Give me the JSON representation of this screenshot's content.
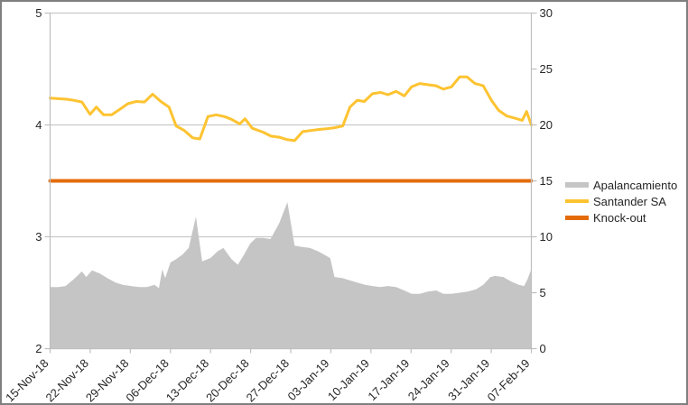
{
  "chart_data": {
    "type": "combo(area+line)",
    "title": "",
    "xlabel": "",
    "ylabel": "",
    "grid": "horizontal-major-only",
    "legend_position": "right",
    "colors": {
      "background": "#FFFFFF",
      "frame_border": "#7F7F7F",
      "grid": "#C9C9C9",
      "axis": "#BFBFBF",
      "labels": "#262626"
    },
    "axes": {
      "left": {
        "min": 2,
        "max": 5,
        "tick_values": [
          5,
          4,
          3,
          2
        ],
        "tick_labels": [
          "5",
          "4",
          "3",
          "2"
        ]
      },
      "right": {
        "min": 0,
        "max": 30,
        "tick_values": [
          30,
          25,
          20,
          15,
          10,
          5,
          0
        ],
        "tick_labels": [
          "30",
          "25",
          "20",
          "15",
          "10",
          "5",
          "0"
        ]
      },
      "x": {
        "labels": [
          "15-Nov-18",
          "22-Nov-18",
          "29-Nov-18",
          "06-Dec-18",
          "13-Dec-18",
          "20-Dec-18",
          "27-Dec-18",
          "03-Jan-19",
          "10-Jan-19",
          "17-Jan-19",
          "24-Jan-19",
          "31-Jan-19",
          "07-Feb-19"
        ],
        "label_rotation_deg": -45
      }
    },
    "series": [
      {
        "name": "Apalancamiento",
        "type": "area",
        "axis": "left",
        "color": "#C5C5C5",
        "points": [
          [
            0.0,
            2.55
          ],
          [
            0.017,
            2.55
          ],
          [
            0.032,
            2.56
          ],
          [
            0.049,
            2.62
          ],
          [
            0.066,
            2.69
          ],
          [
            0.075,
            2.64
          ],
          [
            0.087,
            2.7
          ],
          [
            0.104,
            2.67
          ],
          [
            0.119,
            2.63
          ],
          [
            0.136,
            2.59
          ],
          [
            0.151,
            2.57
          ],
          [
            0.168,
            2.56
          ],
          [
            0.185,
            2.55
          ],
          [
            0.201,
            2.55
          ],
          [
            0.217,
            2.57
          ],
          [
            0.226,
            2.54
          ],
          [
            0.233,
            2.71
          ],
          [
            0.239,
            2.63
          ],
          [
            0.25,
            2.77
          ],
          [
            0.262,
            2.8
          ],
          [
            0.275,
            2.84
          ],
          [
            0.288,
            2.9
          ],
          [
            0.303,
            3.18
          ],
          [
            0.316,
            2.78
          ],
          [
            0.333,
            2.81
          ],
          [
            0.348,
            2.87
          ],
          [
            0.36,
            2.9
          ],
          [
            0.377,
            2.8
          ],
          [
            0.39,
            2.75
          ],
          [
            0.403,
            2.84
          ],
          [
            0.416,
            2.94
          ],
          [
            0.428,
            2.99
          ],
          [
            0.443,
            2.99
          ],
          [
            0.458,
            2.98
          ],
          [
            0.476,
            3.12
          ],
          [
            0.493,
            3.31
          ],
          [
            0.508,
            2.92
          ],
          [
            0.524,
            2.91
          ],
          [
            0.54,
            2.9
          ],
          [
            0.557,
            2.87
          ],
          [
            0.574,
            2.83
          ],
          [
            0.582,
            2.81
          ],
          [
            0.591,
            2.64
          ],
          [
            0.608,
            2.63
          ],
          [
            0.623,
            2.61
          ],
          [
            0.638,
            2.59
          ],
          [
            0.655,
            2.57
          ],
          [
            0.67,
            2.56
          ],
          [
            0.686,
            2.55
          ],
          [
            0.702,
            2.56
          ],
          [
            0.719,
            2.55
          ],
          [
            0.736,
            2.52
          ],
          [
            0.751,
            2.49
          ],
          [
            0.768,
            2.49
          ],
          [
            0.785,
            2.51
          ],
          [
            0.802,
            2.52
          ],
          [
            0.817,
            2.49
          ],
          [
            0.834,
            2.49
          ],
          [
            0.851,
            2.5
          ],
          [
            0.868,
            2.51
          ],
          [
            0.885,
            2.53
          ],
          [
            0.9,
            2.57
          ],
          [
            0.915,
            2.64
          ],
          [
            0.925,
            2.65
          ],
          [
            0.942,
            2.64
          ],
          [
            0.958,
            2.6
          ],
          [
            0.974,
            2.57
          ],
          [
            0.985,
            2.56
          ],
          [
            0.992,
            2.62
          ],
          [
            1.0,
            2.71
          ]
        ]
      },
      {
        "name": "Santander SA",
        "type": "line",
        "axis": "right",
        "color": "#FDC331",
        "width": 3,
        "points": [
          [
            0.0,
            22.4
          ],
          [
            0.017,
            22.35
          ],
          [
            0.034,
            22.3
          ],
          [
            0.049,
            22.2
          ],
          [
            0.066,
            22.05
          ],
          [
            0.083,
            20.95
          ],
          [
            0.096,
            21.6
          ],
          [
            0.111,
            20.9
          ],
          [
            0.128,
            20.9
          ],
          [
            0.145,
            21.4
          ],
          [
            0.162,
            21.9
          ],
          [
            0.179,
            22.1
          ],
          [
            0.196,
            22.05
          ],
          [
            0.213,
            22.75
          ],
          [
            0.23,
            22.1
          ],
          [
            0.247,
            21.6
          ],
          [
            0.262,
            19.9
          ],
          [
            0.279,
            19.5
          ],
          [
            0.296,
            18.85
          ],
          [
            0.311,
            18.75
          ],
          [
            0.328,
            20.75
          ],
          [
            0.345,
            20.9
          ],
          [
            0.362,
            20.75
          ],
          [
            0.377,
            20.5
          ],
          [
            0.394,
            20.1
          ],
          [
            0.405,
            20.55
          ],
          [
            0.42,
            19.7
          ],
          [
            0.443,
            19.35
          ],
          [
            0.459,
            19.0
          ],
          [
            0.476,
            18.9
          ],
          [
            0.491,
            18.7
          ],
          [
            0.508,
            18.6
          ],
          [
            0.525,
            19.4
          ],
          [
            0.542,
            19.5
          ],
          [
            0.559,
            19.6
          ],
          [
            0.574,
            19.65
          ],
          [
            0.591,
            19.75
          ],
          [
            0.608,
            19.9
          ],
          [
            0.623,
            21.6
          ],
          [
            0.638,
            22.2
          ],
          [
            0.653,
            22.1
          ],
          [
            0.67,
            22.8
          ],
          [
            0.687,
            22.9
          ],
          [
            0.702,
            22.7
          ],
          [
            0.719,
            23.0
          ],
          [
            0.736,
            22.6
          ],
          [
            0.751,
            23.4
          ],
          [
            0.768,
            23.7
          ],
          [
            0.785,
            23.6
          ],
          [
            0.802,
            23.5
          ],
          [
            0.817,
            23.2
          ],
          [
            0.834,
            23.4
          ],
          [
            0.851,
            24.3
          ],
          [
            0.866,
            24.3
          ],
          [
            0.883,
            23.7
          ],
          [
            0.9,
            23.5
          ],
          [
            0.917,
            22.2
          ],
          [
            0.932,
            21.3
          ],
          [
            0.949,
            20.8
          ],
          [
            0.966,
            20.6
          ],
          [
            0.981,
            20.4
          ],
          [
            0.99,
            21.2
          ],
          [
            1.0,
            20.0
          ]
        ]
      },
      {
        "name": "Knock-out",
        "type": "line",
        "axis": "right",
        "color": "#E36C0A",
        "width": 4,
        "points": [
          [
            0.0,
            15
          ],
          [
            1.0,
            15
          ]
        ]
      }
    ],
    "legend": {
      "items": [
        {
          "label": "Apalancamiento",
          "color": "#C5C5C5"
        },
        {
          "label": "Santander SA",
          "color": "#FDC331"
        },
        {
          "label": "Knock-out",
          "color": "#E36C0A"
        }
      ]
    }
  }
}
